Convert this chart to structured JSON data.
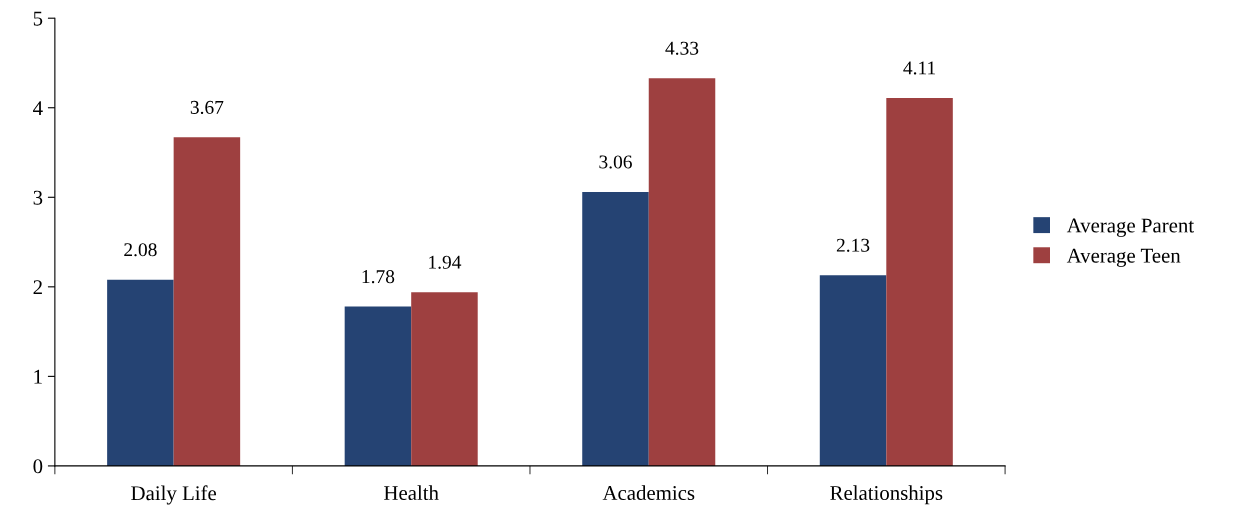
{
  "chart_data": {
    "type": "bar",
    "categories": [
      "Daily Life",
      "Health",
      "Academics",
      "Relationships"
    ],
    "series": [
      {
        "name": "Average Parent",
        "color": "#254373",
        "values": [
          2.08,
          1.78,
          3.06,
          2.13
        ]
      },
      {
        "name": "Average Teen",
        "color": "#9e4040",
        "values": [
          3.67,
          1.94,
          4.33,
          4.11
        ]
      }
    ],
    "ylim": [
      0,
      5
    ],
    "yticks": [
      0,
      1,
      2,
      3,
      4,
      5
    ],
    "data_labels": true,
    "legend": "right",
    "grid": false
  }
}
